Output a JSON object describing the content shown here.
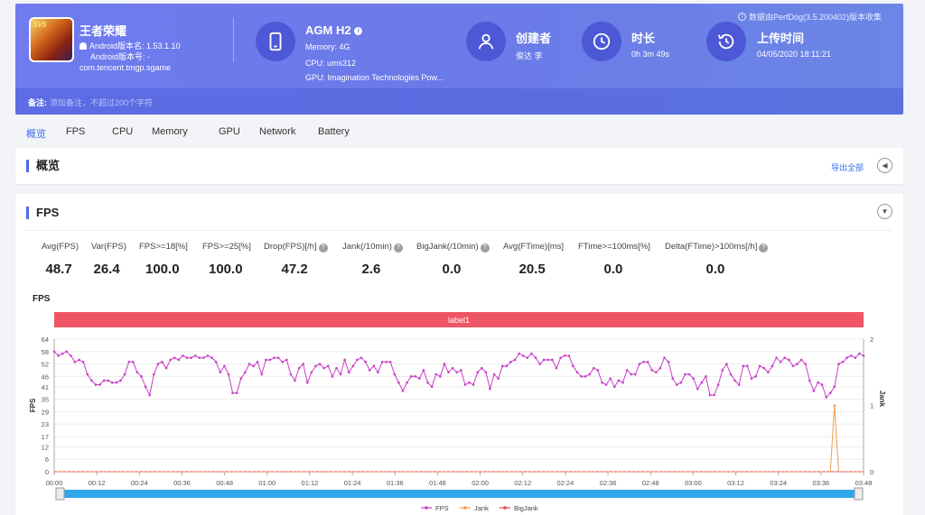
{
  "header": {
    "data_note": "数据由PerfDog(3.5.200402)版本收集",
    "app": {
      "name": "王者荣耀",
      "version_name": "Android版本名: 1.53.1.10",
      "version_code": "Android版本号: -",
      "package": "com.tencent.tmgp.sgame",
      "badge": "5V5"
    },
    "device": {
      "name": "AGM H2",
      "memory": "Memory: 4G",
      "cpu": "CPU: ums312",
      "gpu": "GPU: Imagination Technologies Pow..."
    },
    "creator": {
      "title": "创建者",
      "value": "俊达 李"
    },
    "duration": {
      "title": "时长",
      "value": "0h 3m 49s"
    },
    "upload": {
      "title": "上传时间",
      "value": "04/05/2020 18:11:21"
    },
    "note_label": "备注:",
    "note_placeholder": "添加备注，不超过200个字符"
  },
  "tabs": [
    "概览",
    "FPS",
    "CPU",
    "Memory",
    "GPU",
    "Network",
    "Battery"
  ],
  "overview": {
    "title": "概览",
    "export_label": "导出全部"
  },
  "fps_section": {
    "title": "FPS",
    "metrics": [
      {
        "label": "Avg(FPS)",
        "value": "48.7",
        "help": false
      },
      {
        "label": "Var(FPS)",
        "value": "26.4",
        "help": false
      },
      {
        "label": "FPS>=18[%]",
        "value": "100.0",
        "help": false
      },
      {
        "label": "FPS>=25[%]",
        "value": "100.0",
        "help": false
      },
      {
        "label": "Drop(FPS)[/h]",
        "value": "47.2",
        "help": true
      },
      {
        "label": "Jank(/10min)",
        "value": "2.6",
        "help": true
      },
      {
        "label": "BigJank(/10min)",
        "value": "0.0",
        "help": true
      },
      {
        "label": "Avg(FTime)[ms]",
        "value": "20.5",
        "help": false
      },
      {
        "label": "FTime>=100ms[%]",
        "value": "0.0",
        "help": false
      },
      {
        "label": "Delta(FTime)>100ms[/h]",
        "value": "0.0",
        "help": true
      }
    ]
  },
  "chart_data": {
    "type": "line",
    "title": "FPS",
    "band_label": "label1",
    "ylabel": "FPS",
    "y2label": "Jank",
    "ylim": [
      0,
      64
    ],
    "yticks": [
      0,
      6,
      12,
      17,
      23,
      29,
      35,
      41,
      46,
      52,
      58,
      64
    ],
    "y2lim": [
      0,
      2
    ],
    "y2ticks": [
      0,
      1,
      2
    ],
    "xlim": [
      "00:00",
      "03:48"
    ],
    "xticks": [
      "00:00",
      "00:12",
      "00:24",
      "00:36",
      "00:48",
      "01:00",
      "01:12",
      "01:24",
      "01:36",
      "01:48",
      "02:00",
      "02:12",
      "02:24",
      "02:36",
      "02:48",
      "03:00",
      "03:12",
      "03:24",
      "03:36",
      "03:48"
    ],
    "legend": [
      "FPS",
      "Jank",
      "BigJank"
    ],
    "legend_position": "bottom",
    "colors": {
      "FPS": "#c83fc8",
      "Jank": "#f29b4a",
      "BigJank": "#e0454f",
      "band": "#ee5565"
    },
    "series": [
      {
        "name": "FPS",
        "axis": "left",
        "values": [
          58,
          56,
          57,
          58,
          56,
          53,
          54,
          53,
          47,
          44,
          42,
          42,
          44,
          44,
          43,
          43,
          44,
          47,
          53,
          53,
          48,
          46,
          41,
          37,
          47,
          52,
          53,
          50,
          54,
          55,
          54,
          56,
          55,
          55,
          56,
          55,
          55,
          56,
          55,
          53,
          48,
          51,
          47,
          38,
          38,
          45,
          48,
          52,
          51,
          53,
          47,
          54,
          54,
          55,
          55,
          53,
          54,
          47,
          44,
          50,
          52,
          43,
          48,
          51,
          52,
          50,
          51,
          46,
          50,
          47,
          54,
          48,
          51,
          54,
          55,
          53,
          49,
          51,
          48,
          53,
          53,
          53,
          47,
          43,
          39,
          43,
          46,
          46,
          45,
          49,
          43,
          41,
          47,
          46,
          52,
          48,
          50,
          48,
          49,
          42,
          43,
          42,
          48,
          50,
          48,
          40,
          47,
          45,
          51,
          51,
          53,
          54,
          57,
          56,
          55,
          57,
          55,
          52,
          54,
          54,
          54,
          50,
          55,
          56,
          56,
          51,
          48,
          46,
          46,
          47,
          50,
          49,
          43,
          42,
          45,
          41,
          44,
          43,
          49,
          47,
          47,
          52,
          53,
          53,
          49,
          48,
          50,
          55,
          53,
          45,
          42,
          43,
          47,
          47,
          45,
          40,
          43,
          46,
          37,
          37,
          42,
          49,
          52,
          47,
          44,
          42,
          51,
          51,
          45,
          46,
          51,
          50,
          48,
          51,
          55,
          53,
          55,
          54,
          51,
          52,
          54,
          52,
          44,
          39,
          43,
          42,
          36,
          38,
          41,
          52,
          53,
          55,
          56,
          55,
          57,
          56
        ]
      },
      {
        "name": "Jank",
        "axis": "right",
        "values": [
          0,
          0,
          0,
          0,
          0,
          0,
          0,
          0,
          0,
          0,
          0,
          0,
          0,
          0,
          0,
          0,
          0,
          0,
          0,
          0,
          0,
          0,
          0,
          0,
          0,
          0,
          0,
          0,
          0,
          0,
          0,
          0,
          0,
          0,
          0,
          0,
          0,
          0,
          0,
          0,
          0,
          0,
          0,
          0,
          0,
          0,
          0,
          0,
          0,
          0,
          0,
          0,
          0,
          0,
          0,
          0,
          0,
          0,
          0,
          0,
          0,
          0,
          0,
          0,
          0,
          0,
          0,
          0,
          0,
          0,
          0,
          0,
          0,
          0,
          0,
          0,
          0,
          0,
          0,
          0,
          0,
          0,
          0,
          0,
          0,
          0,
          0,
          0,
          0,
          0,
          0,
          0,
          0,
          0,
          0,
          0,
          0,
          0,
          0,
          0,
          0,
          0,
          0,
          0,
          0,
          0,
          0,
          0,
          0,
          0,
          0,
          0,
          0,
          0,
          0,
          0,
          0,
          0,
          0,
          0,
          0,
          0,
          0,
          0,
          0,
          0,
          0,
          0,
          0,
          0,
          0,
          0,
          0,
          0,
          0,
          0,
          0,
          0,
          0,
          0,
          0,
          0,
          0,
          0,
          0,
          0,
          0,
          0,
          0,
          0,
          0,
          0,
          0,
          0,
          0,
          0,
          0,
          0,
          0,
          0,
          0,
          0,
          0,
          0,
          0,
          0,
          0,
          0,
          0,
          0,
          0,
          0,
          0,
          0,
          0,
          0,
          0,
          0,
          0,
          0,
          0,
          0,
          0,
          0,
          0,
          0,
          0,
          0,
          1,
          0,
          0,
          0,
          0,
          0,
          0,
          0
        ]
      },
      {
        "name": "BigJank",
        "axis": "right",
        "values": [
          0,
          0,
          0,
          0,
          0,
          0,
          0,
          0,
          0,
          0,
          0,
          0,
          0,
          0,
          0,
          0,
          0,
          0,
          0,
          0,
          0,
          0,
          0,
          0,
          0,
          0,
          0,
          0,
          0,
          0,
          0,
          0,
          0,
          0,
          0,
          0,
          0,
          0,
          0,
          0,
          0,
          0,
          0,
          0,
          0,
          0,
          0,
          0,
          0,
          0,
          0,
          0,
          0,
          0,
          0,
          0,
          0,
          0,
          0,
          0,
          0,
          0,
          0,
          0,
          0,
          0,
          0,
          0,
          0,
          0,
          0,
          0,
          0,
          0,
          0,
          0,
          0,
          0,
          0,
          0,
          0,
          0,
          0,
          0,
          0,
          0,
          0,
          0,
          0,
          0,
          0,
          0,
          0,
          0,
          0,
          0,
          0,
          0,
          0,
          0,
          0,
          0,
          0,
          0,
          0,
          0,
          0,
          0,
          0,
          0,
          0,
          0,
          0,
          0,
          0,
          0,
          0,
          0,
          0,
          0,
          0,
          0,
          0,
          0,
          0,
          0,
          0,
          0,
          0,
          0,
          0,
          0,
          0,
          0,
          0,
          0,
          0,
          0,
          0,
          0,
          0,
          0,
          0,
          0,
          0,
          0,
          0,
          0,
          0,
          0,
          0,
          0,
          0,
          0,
          0,
          0,
          0,
          0,
          0,
          0,
          0,
          0,
          0,
          0,
          0,
          0,
          0,
          0,
          0,
          0,
          0,
          0,
          0,
          0,
          0,
          0,
          0,
          0,
          0,
          0,
          0,
          0,
          0,
          0,
          0,
          0,
          0,
          0,
          0,
          0,
          0,
          0,
          0,
          0,
          0,
          0
        ]
      }
    ],
    "grid": true
  }
}
